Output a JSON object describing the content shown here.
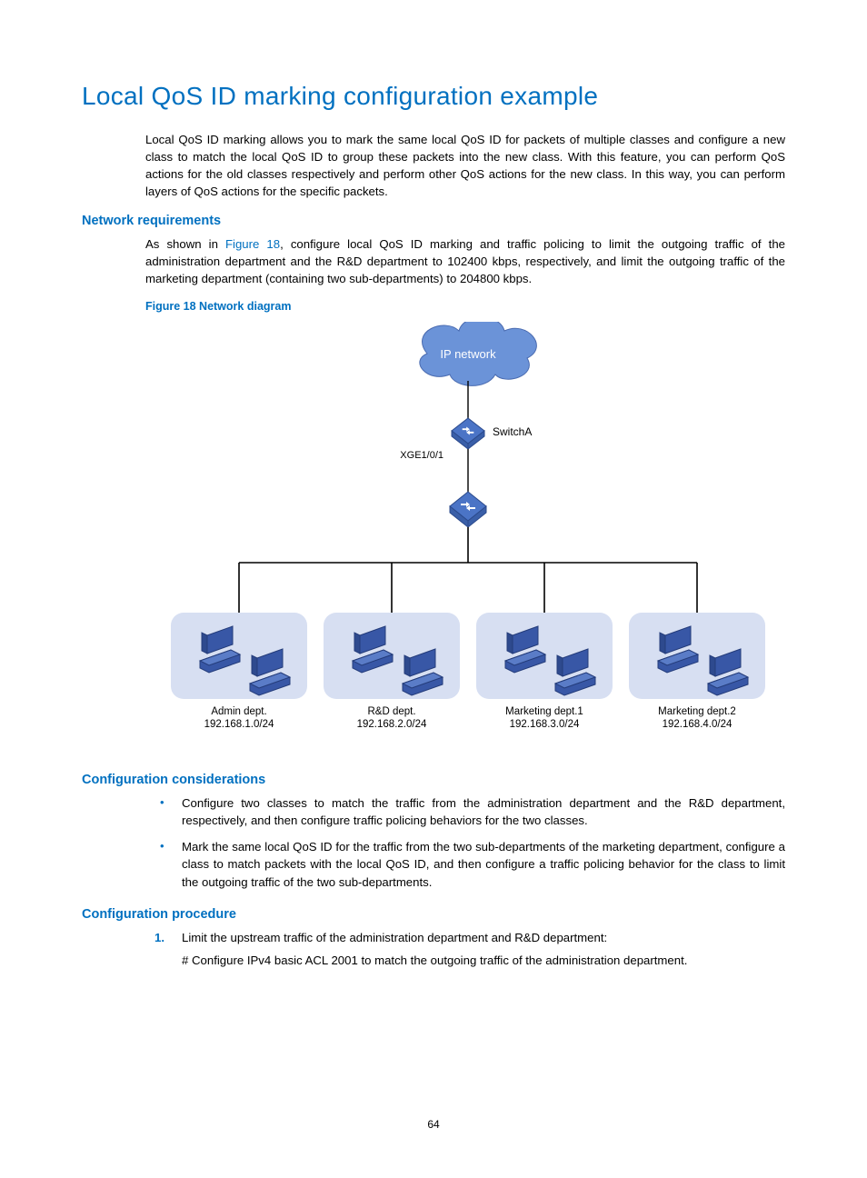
{
  "title": "Local QoS ID marking configuration example",
  "intro": "Local QoS ID marking allows you to mark the same local QoS ID for packets of multiple classes and configure a new class to match the local QoS ID to group these packets into the new class. With this feature, you can perform QoS actions for the old classes respectively and perform other QoS actions for the new class. In this way, you can perform layers of QoS actions for the specific packets.",
  "sec1_heading": "Network requirements",
  "sec1_pre": "As shown in ",
  "sec1_link": "Figure 18",
  "sec1_post": ", configure local QoS ID marking and traffic policing to limit the outgoing traffic of the administration department and the R&D department to 102400 kbps, respectively, and limit the outgoing traffic of the marketing department (containing two sub-departments) to 204800 kbps.",
  "figure_caption": "Figure 18 Network diagram",
  "diagram": {
    "colors": {
      "cloud_fill": "#6b93d8",
      "cloud_text": "#ffffff",
      "switch_fill": "#4b74c6",
      "switch_stroke": "#2b4a8c",
      "line": "#000000",
      "dept_bg": "#d7dff2",
      "pc_fill": "#3857a6",
      "pc_stroke": "#243c7a",
      "text": "#000000"
    },
    "cloud_label": "IP network",
    "switch_label": "SwitchA",
    "port_label": "XGE1/0/1",
    "departments": [
      {
        "name": "Admin dept.",
        "subnet": "192.168.1.0/24"
      },
      {
        "name": "R&D dept.",
        "subnet": "192.168.2.0/24"
      },
      {
        "name": "Marketing dept.1",
        "subnet": "192.168.3.0/24"
      },
      {
        "name": "Marketing dept.2",
        "subnet": "192.168.4.0/24"
      }
    ]
  },
  "sec2_heading": "Configuration considerations",
  "bullets": [
    "Configure two classes to match the traffic from the administration department and the R&D department, respectively, and then configure traffic policing behaviors for the two classes.",
    "Mark the same local QoS ID for the traffic from the two sub-departments of the marketing department, configure a class to match packets with the local QoS ID, and then configure a traffic policing behavior for the class to limit the outgoing traffic of the two sub-departments."
  ],
  "sec3_heading": "Configuration procedure",
  "step1_num": "1.",
  "step1_text": "Limit the upstream traffic of the administration department and R&D department:",
  "step1_sub": "# Configure IPv4 basic ACL 2001 to match the outgoing traffic of the administration department.",
  "page_number": "64"
}
